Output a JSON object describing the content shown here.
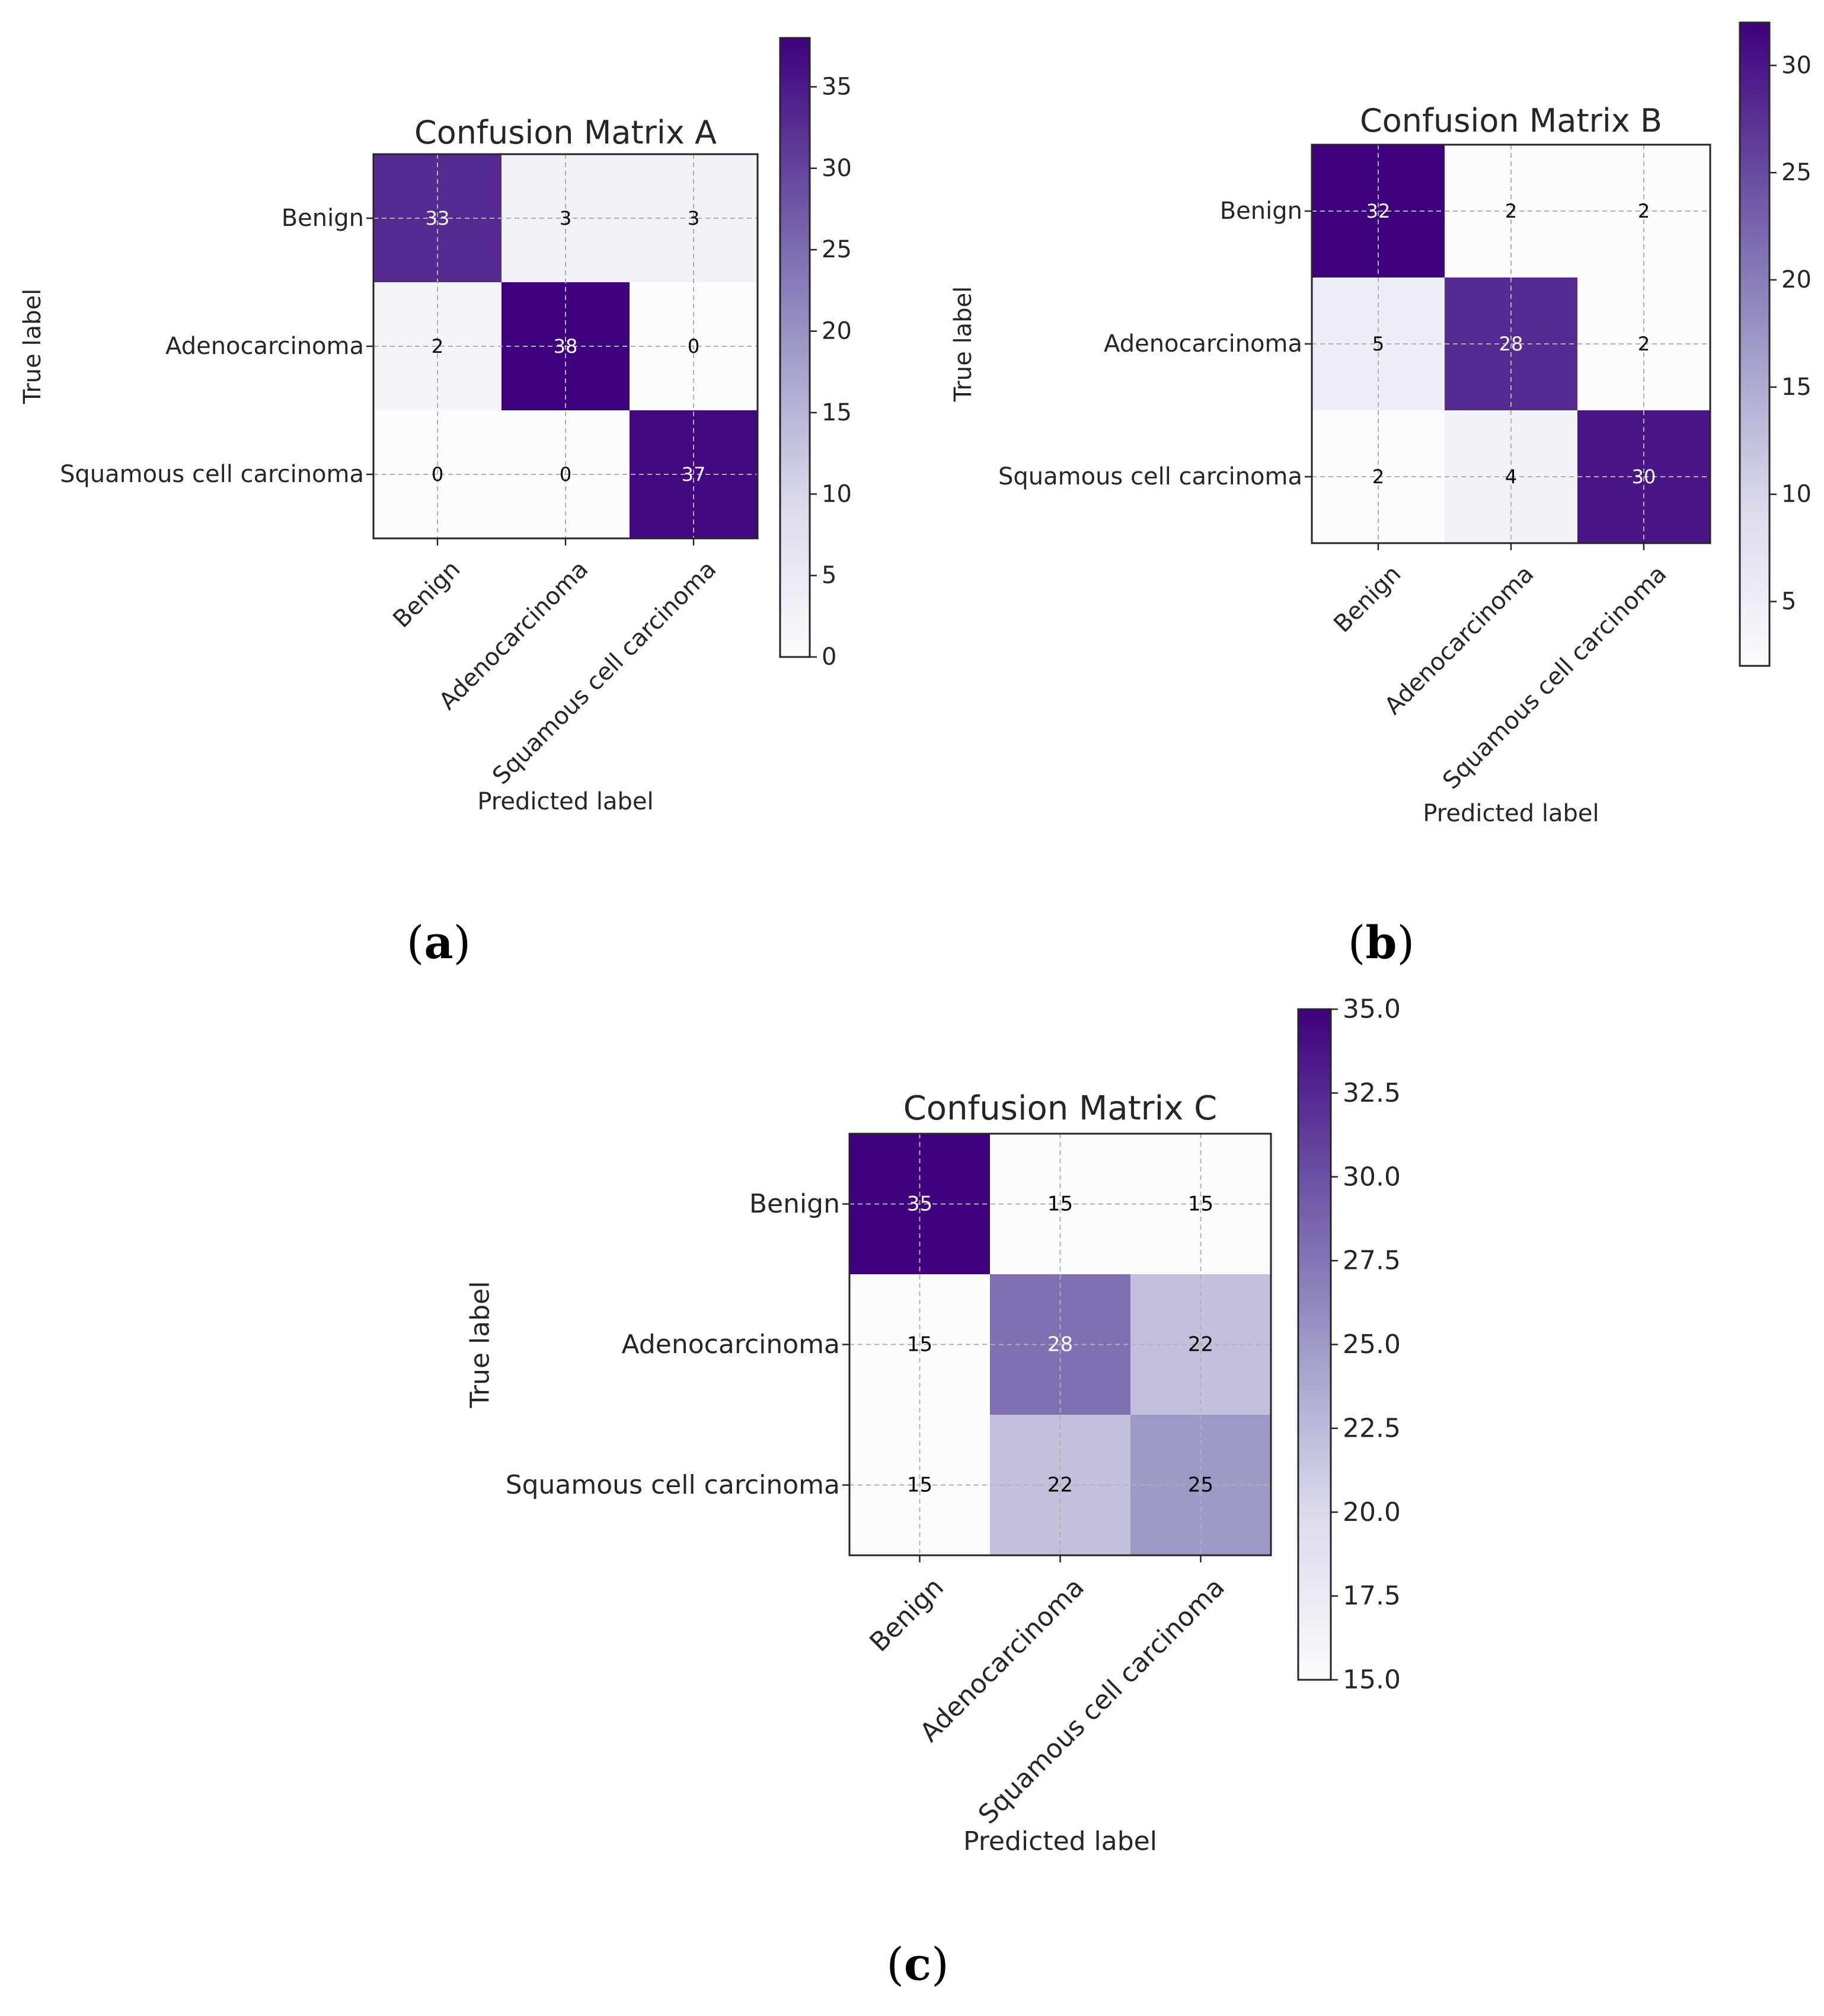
{
  "chart_data": [
    {
      "type": "heatmap",
      "title": "Confusion Matrix A",
      "panel_label": "a",
      "xlabel": "Predicted label",
      "ylabel": "True label",
      "x_categories": [
        "Benign",
        "Adenocarcinoma",
        "Squamous cell carcinoma"
      ],
      "y_categories": [
        "Benign",
        "Adenocarcinoma",
        "Squamous cell carcinoma"
      ],
      "values": [
        [
          33,
          3,
          3
        ],
        [
          2,
          38,
          0
        ],
        [
          0,
          0,
          37
        ]
      ],
      "colorbar": {
        "min": 0,
        "max": 38,
        "ticks": [
          0,
          5,
          10,
          15,
          20,
          25,
          30,
          35
        ],
        "tick_labels": [
          "0",
          "5",
          "10",
          "15",
          "20",
          "25",
          "30",
          "35"
        ]
      },
      "colormap": [
        "#fcfbfd",
        "#dadaeb",
        "#9e9ac8",
        "#6a51a3",
        "#3f007d"
      ],
      "grid": true
    },
    {
      "type": "heatmap",
      "title": "Confusion Matrix B",
      "panel_label": "b",
      "xlabel": "Predicted label",
      "ylabel": "True label",
      "x_categories": [
        "Benign",
        "Adenocarcinoma",
        "Squamous cell carcinoma"
      ],
      "y_categories": [
        "Benign",
        "Adenocarcinoma",
        "Squamous cell carcinoma"
      ],
      "values": [
        [
          32,
          2,
          2
        ],
        [
          5,
          28,
          2
        ],
        [
          2,
          4,
          30
        ]
      ],
      "colorbar": {
        "min": 2,
        "max": 32,
        "ticks": [
          5,
          10,
          15,
          20,
          25,
          30
        ],
        "tick_labels": [
          "5",
          "10",
          "15",
          "20",
          "25",
          "30"
        ]
      },
      "colormap": [
        "#fcfbfd",
        "#dadaeb",
        "#9e9ac8",
        "#6a51a3",
        "#3f007d"
      ],
      "grid": true
    },
    {
      "type": "heatmap",
      "title": "Confusion Matrix C",
      "panel_label": "c",
      "xlabel": "Predicted label",
      "ylabel": "True label",
      "x_categories": [
        "Benign",
        "Adenocarcinoma",
        "Squamous cell carcinoma"
      ],
      "y_categories": [
        "Benign",
        "Adenocarcinoma",
        "Squamous cell carcinoma"
      ],
      "values": [
        [
          35,
          15,
          15
        ],
        [
          15,
          28,
          22
        ],
        [
          15,
          22,
          25
        ]
      ],
      "colorbar": {
        "min": 15,
        "max": 35,
        "ticks": [
          15,
          17.5,
          20,
          22.5,
          25,
          27.5,
          30,
          32.5,
          35
        ],
        "tick_labels": [
          "15.0",
          "17.5",
          "20.0",
          "22.5",
          "25.0",
          "27.5",
          "30.0",
          "32.5",
          "35.0"
        ]
      },
      "colormap": [
        "#fcfbfd",
        "#dadaeb",
        "#9e9ac8",
        "#6a51a3",
        "#3f007d"
      ],
      "grid": true
    }
  ]
}
